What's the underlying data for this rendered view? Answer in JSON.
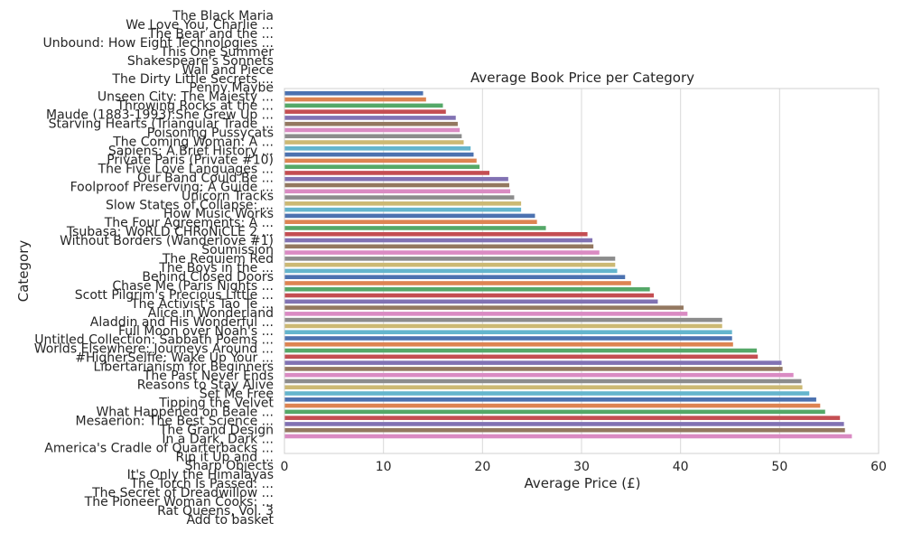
{
  "chart_data": {
    "type": "bar",
    "orientation": "horizontal",
    "title": "Average Book Price per Category",
    "xlabel": "Average Price (£)",
    "ylabel": "Category",
    "xlim": [
      0,
      60
    ],
    "xticks": [
      "0",
      "10",
      "20",
      "30",
      "40",
      "50",
      "60"
    ],
    "grid": "x",
    "values": [
      14.0,
      14.3,
      16.0,
      16.3,
      17.3,
      17.5,
      17.7,
      17.9,
      18.1,
      18.8,
      19.1,
      19.4,
      19.7,
      20.7,
      22.6,
      22.7,
      22.8,
      23.2,
      23.9,
      23.9,
      25.3,
      25.5,
      26.4,
      30.6,
      31.1,
      31.2,
      31.8,
      33.4,
      33.4,
      33.6,
      34.4,
      35.0,
      36.9,
      37.3,
      37.7,
      40.3,
      40.7,
      44.2,
      44.2,
      45.2,
      45.2,
      45.3,
      47.7,
      47.8,
      50.2,
      50.3,
      51.4,
      52.2,
      52.3,
      53.0,
      53.7,
      54.1,
      54.6,
      56.1,
      56.5,
      56.6,
      57.3
    ],
    "colors": [
      "#4c72b0",
      "#dd8452",
      "#55a868",
      "#c44e52",
      "#8172b3",
      "#937860",
      "#da8bc3",
      "#8c8c8c",
      "#ccb974",
      "#64b5cd"
    ],
    "categories": [
      "The Black Maria",
      "We Love You, Charlie ...",
      "The Bear and the ...",
      "Unbound: How Eight Technologies ...",
      "This One Summer",
      "Shakespeare's Sonnets",
      "Wall and Piece",
      "The Dirty Little Secrets ...",
      "Penny Maybe",
      "Unseen City: The Majesty ...",
      "Throwing Rocks at the ...",
      "Maude (1883-1993):She Grew Up ...",
      "Starving Hearts (Triangular Trade ...",
      "Poisoning Pussycats",
      "The Coming Woman: A ...",
      "Sapiens: A Brief History ...",
      "Private Paris (Private #10)",
      "The Five Love Languages ...",
      "Our Band Could Be ...",
      "Foolproof Preserving: A Guide ...",
      "Unicorn Tracks",
      "Slow States of Collapse: ...",
      "How Music Works",
      "The Four Agreements: A ...",
      "Tsubasa: WoRLD CHRoNiCLE 2 ...",
      "Without Borders (Wanderlove #1)",
      "Soumission",
      "The Requiem Red",
      "The Boys in the ...",
      "Behind Closed Doors",
      "Chase Me (Paris Nights ...",
      "Scott Pilgrim's Precious Little ...",
      "The Activist's Tao Te ...",
      "Alice in Wonderland",
      "Aladdin and His Wonderful ...",
      "Full Moon over Noah's ...",
      "Untitled Collection: Sabbath Poems ...",
      "Worlds Elsewhere: Journeys Around ...",
      "#HigherSelfie: Wake Up Your ...",
      "Libertarianism for Beginners",
      "The Past Never Ends",
      "Reasons to Stay Alive",
      "Set Me Free",
      "Tipping the Velvet",
      "What Happened on Beale ...",
      "Mesaerion: The Best Science ...",
      "The Grand Design",
      "In a Dark, Dark ...",
      "America's Cradle of Quarterbacks ...",
      "Rip it Up and ...",
      "Sharp Objects",
      "It's Only the Himalayas",
      "The Torch Is Passed: ...",
      "The Secret of Dreadwillow ...",
      "The Pioneer Woman Cooks: ...",
      "Rat Queens, Vol. 3",
      "Add to basket"
    ]
  }
}
